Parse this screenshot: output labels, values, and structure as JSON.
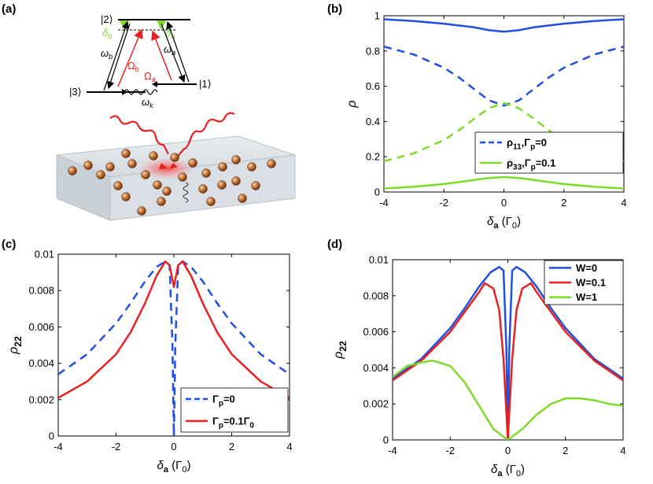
{
  "panels": {
    "a": {
      "tag": "(a)"
    },
    "b": {
      "tag": "(b)"
    },
    "c": {
      "tag": "(c)"
    },
    "d": {
      "tag": "(d)"
    }
  },
  "diagram": {
    "level2": "|2⟩",
    "level3": "|3⟩",
    "level1": "|1⟩",
    "delta_b": "δ",
    "delta_b_sub": "b",
    "delta_a": "δ",
    "delta_a_sub": "a",
    "omega_b": "ω",
    "omega_b_sub": "b",
    "omega_a": "ω",
    "omega_a_sub": "a",
    "Omega_b": "Ω",
    "Omega_b_sub": "b",
    "Omega_a": "Ω",
    "Omega_a_sub": "a",
    "omega_k": "ω",
    "omega_k_sub": "k",
    "colors": {
      "red": "#e8201f",
      "green": "#7cdc2a",
      "slab": "#dfe4e8",
      "atom": "#b8672a"
    }
  },
  "chart_data": [
    {
      "id": "b",
      "type": "line",
      "xlabel": "δ",
      "xlabel_sub": "a",
      "xlabel_unit": " (Γ",
      "xlabel_unit_sub": "0",
      "xlabel_close": ")",
      "ylabel": "ρ",
      "xlim": [
        -4,
        4
      ],
      "ylim": [
        0,
        1
      ],
      "xticks": [
        -4,
        -2,
        0,
        2,
        4
      ],
      "xtick_labels": [
        "-4",
        "-2",
        "0",
        "2",
        "4"
      ],
      "yticks": [
        0,
        0.2,
        0.4,
        0.6,
        0.8,
        1
      ],
      "ytick_labels": [
        "0",
        "0.2",
        "0.4",
        "0.6",
        "0.8",
        "1"
      ],
      "series": [
        {
          "name": "rho11_gp0",
          "color": "#1f4fe0",
          "dash": "dashed",
          "x": [
            -4,
            -3,
            -2,
            -1.5,
            -1,
            -0.5,
            0,
            0.5,
            1,
            1.5,
            2,
            3,
            4
          ],
          "y": [
            0.825,
            0.78,
            0.705,
            0.65,
            0.585,
            0.52,
            0.49,
            0.52,
            0.585,
            0.65,
            0.705,
            0.78,
            0.825
          ]
        },
        {
          "name": "rho11_gp01",
          "color": "#1f4fe0",
          "dash": "solid",
          "x": [
            -4,
            -3,
            -2,
            -1,
            -0.5,
            0,
            0.5,
            1,
            2,
            3,
            4
          ],
          "y": [
            0.98,
            0.97,
            0.955,
            0.935,
            0.918,
            0.91,
            0.918,
            0.935,
            0.955,
            0.97,
            0.98
          ]
        },
        {
          "name": "rho33_gp0",
          "color": "#7cdc2a",
          "dash": "dashed",
          "x": [
            -4,
            -3,
            -2,
            -1.5,
            -1,
            -0.5,
            0,
            0.5,
            1,
            1.5,
            2,
            3,
            4
          ],
          "y": [
            0.175,
            0.22,
            0.295,
            0.35,
            0.415,
            0.475,
            0.505,
            0.475,
            0.415,
            0.35,
            0.295,
            0.22,
            0.175
          ]
        },
        {
          "name": "rho33_gp01",
          "color": "#7cdc2a",
          "dash": "solid",
          "x": [
            -4,
            -3,
            -2,
            -1,
            -0.5,
            0,
            0.5,
            1,
            2,
            3,
            4
          ],
          "y": [
            0.02,
            0.03,
            0.045,
            0.068,
            0.08,
            0.085,
            0.08,
            0.068,
            0.045,
            0.03,
            0.02
          ]
        }
      ],
      "legend": {
        "position": "right",
        "entries": [
          {
            "series": "rho11_gp0",
            "label": "ρ",
            "sub": "11",
            "rest": ",Γ",
            "rest_sub": "p",
            "tail": "=0"
          },
          {
            "series": "rho33_gp01",
            "label": "ρ",
            "sub": "33",
            "rest": ",Γ",
            "rest_sub": "p",
            "tail": "=0.1"
          }
        ]
      }
    },
    {
      "id": "c",
      "type": "line",
      "xlabel": "δ",
      "xlabel_sub": "a",
      "xlabel_unit": " (Γ",
      "xlabel_unit_sub": "0",
      "xlabel_close": ")",
      "ylabel": "ρ",
      "ylabel_sub": "22",
      "xlim": [
        -4,
        4
      ],
      "ylim": [
        0,
        0.01
      ],
      "xticks": [
        -4,
        -2,
        0,
        2,
        4
      ],
      "xtick_labels": [
        "-4",
        "-2",
        "0",
        "2",
        "4"
      ],
      "yticks": [
        0,
        0.002,
        0.004,
        0.006,
        0.008,
        0.01
      ],
      "ytick_labels": [
        "0",
        "0.002",
        "0.004",
        "0.006",
        "0.008",
        "0.01"
      ],
      "series": [
        {
          "name": "gp0",
          "color": "#1f4fe0",
          "dash": "dashed",
          "x": [
            -4,
            -3,
            -2,
            -1.5,
            -1,
            -0.6,
            -0.3,
            -0.15,
            -0.05,
            0,
            0.05,
            0.15,
            0.3,
            0.6,
            1,
            1.5,
            2,
            3,
            4
          ],
          "y": [
            0.0034,
            0.0045,
            0.0062,
            0.0073,
            0.0085,
            0.0093,
            0.0096,
            0.0094,
            0.005,
            0.0,
            0.005,
            0.0094,
            0.0096,
            0.0093,
            0.0085,
            0.0073,
            0.0062,
            0.0045,
            0.0034
          ]
        },
        {
          "name": "gp01",
          "color": "#e8201f",
          "dash": "solid",
          "x": [
            -4,
            -3,
            -2,
            -1.5,
            -1,
            -0.6,
            -0.3,
            -0.15,
            -0.05,
            0,
            0.05,
            0.15,
            0.3,
            0.6,
            1,
            1.5,
            2,
            3,
            4
          ],
          "y": [
            0.0021,
            0.003,
            0.0045,
            0.0057,
            0.0073,
            0.0088,
            0.0096,
            0.0094,
            0.0086,
            0.0082,
            0.0086,
            0.0094,
            0.0096,
            0.0088,
            0.0073,
            0.0057,
            0.0045,
            0.003,
            0.0021
          ]
        }
      ],
      "legend": {
        "position": "bottom-right",
        "entries": [
          {
            "series": "gp0",
            "label": "Γ",
            "sub": "p",
            "rest": "=0",
            "rest_sub": "",
            "tail": ""
          },
          {
            "series": "gp01",
            "label": "Γ",
            "sub": "p",
            "rest": "=0.1Γ",
            "rest_sub": "0",
            "tail": ""
          }
        ]
      }
    },
    {
      "id": "d",
      "type": "line",
      "xlabel": "δ",
      "xlabel_sub": "a",
      "xlabel_unit": " (Γ",
      "xlabel_unit_sub": "0",
      "xlabel_close": ")",
      "ylabel": "ρ",
      "ylabel_sub": "22",
      "xlim": [
        -4,
        4
      ],
      "ylim": [
        0,
        0.01
      ],
      "xticks": [
        -4,
        -2,
        0,
        2,
        4
      ],
      "xtick_labels": [
        "-4",
        "-2",
        "0",
        "2",
        "4"
      ],
      "yticks": [
        0,
        0.002,
        0.004,
        0.006,
        0.008,
        0.01
      ],
      "ytick_labels": [
        "0",
        "0.002",
        "0.004",
        "0.006",
        "0.008",
        "0.01"
      ],
      "series": [
        {
          "name": "W0",
          "color": "#1f4fe0",
          "dash": "solid",
          "x": [
            -4,
            -3,
            -2,
            -1.5,
            -1,
            -0.6,
            -0.3,
            -0.15,
            -0.05,
            0,
            0.05,
            0.15,
            0.3,
            0.6,
            1,
            1.5,
            2,
            3,
            4
          ],
          "y": [
            0.0034,
            0.0045,
            0.0062,
            0.0073,
            0.0085,
            0.0093,
            0.0096,
            0.0094,
            0.005,
            0.0,
            0.005,
            0.0094,
            0.0096,
            0.0093,
            0.0085,
            0.0073,
            0.0062,
            0.0045,
            0.0034
          ]
        },
        {
          "name": "W01",
          "color": "#e8201f",
          "dash": "solid",
          "x": [
            -4,
            -3,
            -2,
            -1.5,
            -1,
            -0.8,
            -0.5,
            -0.3,
            -0.15,
            -0.05,
            0,
            0.05,
            0.15,
            0.3,
            0.5,
            0.8,
            1,
            1.5,
            2,
            3,
            4
          ],
          "y": [
            0.0033,
            0.0044,
            0.006,
            0.0071,
            0.0082,
            0.0087,
            0.0084,
            0.0072,
            0.0045,
            0.0015,
            0.0,
            0.0015,
            0.0045,
            0.0072,
            0.0084,
            0.0087,
            0.0082,
            0.0071,
            0.006,
            0.0044,
            0.0033
          ]
        },
        {
          "name": "W1",
          "color": "#7cdc2a",
          "dash": "solid",
          "x": [
            -4,
            -3.5,
            -3,
            -2.6,
            -2,
            -1.5,
            -1,
            -0.5,
            0,
            0.5,
            1,
            1.5,
            2,
            2.5,
            3,
            3.5,
            4
          ],
          "y": [
            0.0035,
            0.0041,
            0.0043,
            0.0044,
            0.0041,
            0.0032,
            0.0019,
            0.0006,
            0.0,
            0.0006,
            0.0014,
            0.002,
            0.0023,
            0.0023,
            0.0022,
            0.002,
            0.0019
          ]
        }
      ],
      "legend": {
        "position": "top-right",
        "entries": [
          {
            "series": "W0",
            "label": "W=0",
            "sub": "",
            "rest": "",
            "rest_sub": "",
            "tail": ""
          },
          {
            "series": "W01",
            "label": "W=0.1",
            "sub": "",
            "rest": "",
            "rest_sub": "",
            "tail": ""
          },
          {
            "series": "W1",
            "label": "W=1",
            "sub": "",
            "rest": "",
            "rest_sub": "",
            "tail": ""
          }
        ]
      }
    }
  ]
}
